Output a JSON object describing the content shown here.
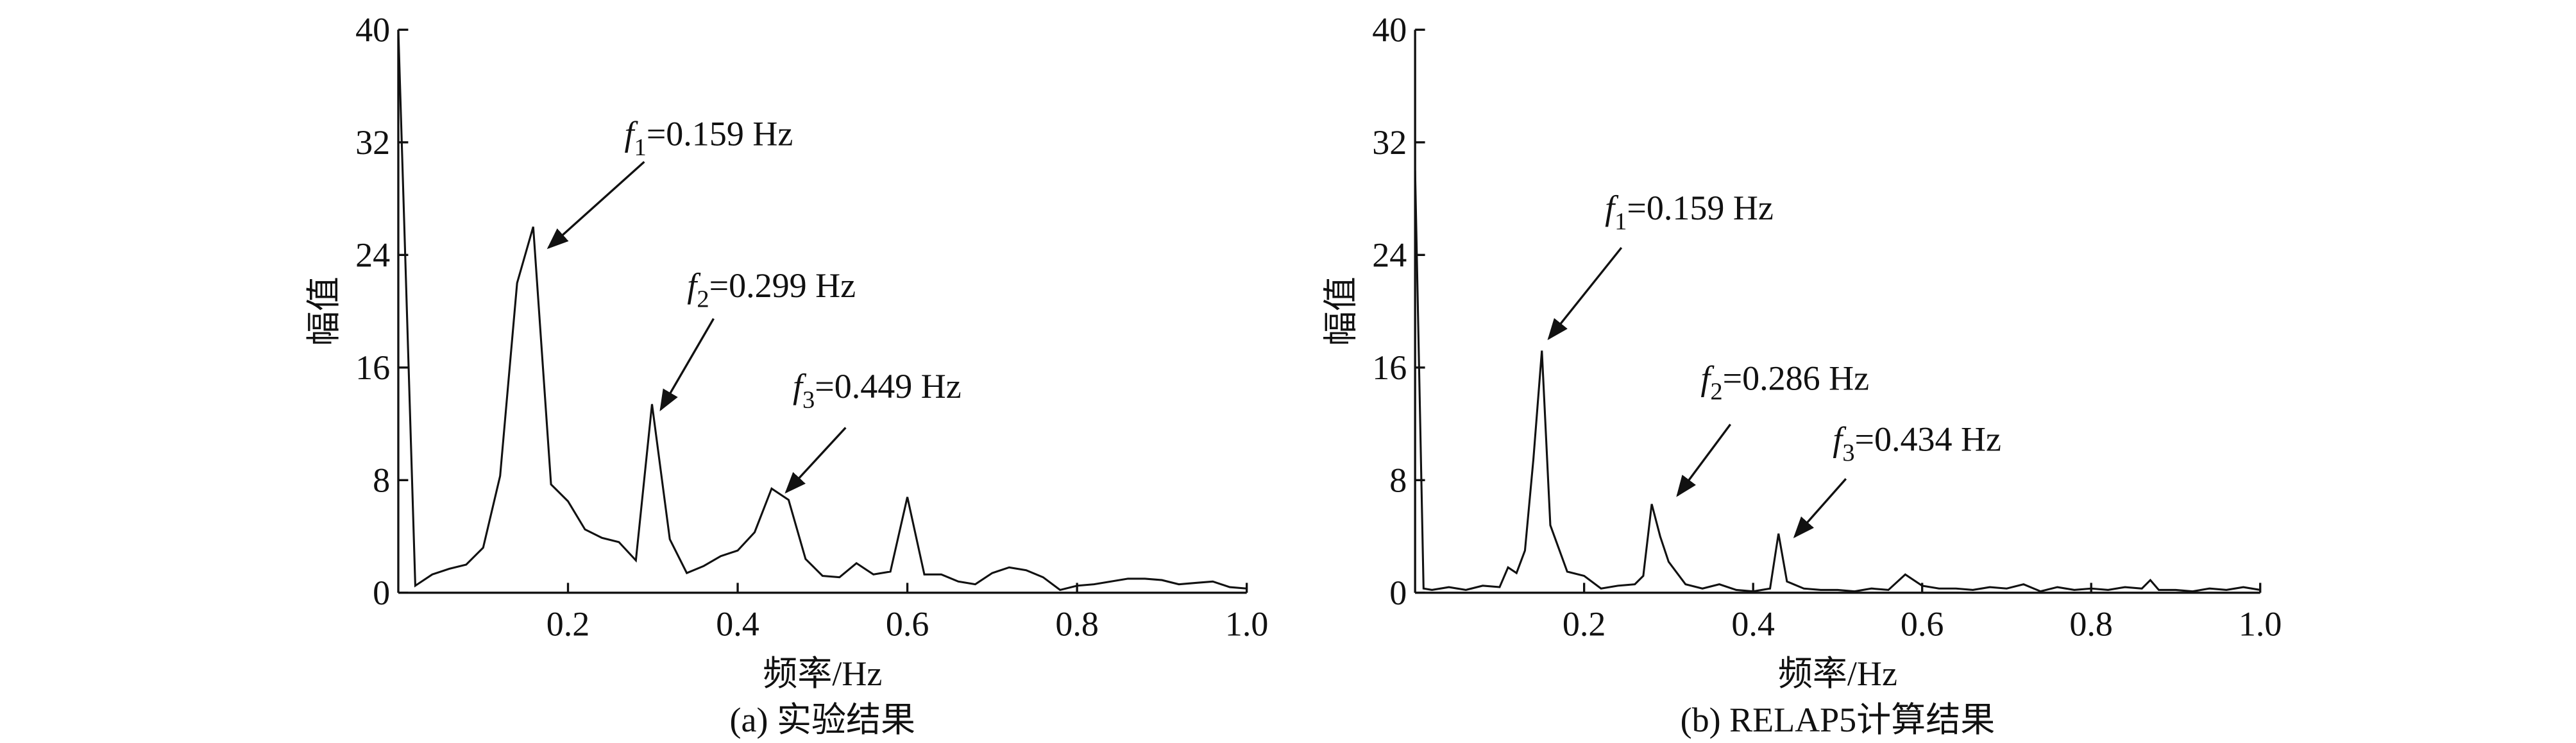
{
  "chart_data": [
    {
      "type": "line",
      "caption": "(a) 实验结果",
      "xlabel": "频率/Hz",
      "ylabel": "幅值",
      "color": "#111111",
      "xlim": [
        0,
        1
      ],
      "xticks": [
        0.2,
        0.4,
        0.6,
        0.8,
        {
          "value": 1,
          "label": "1.0"
        }
      ],
      "ylim": [
        0,
        40
      ],
      "yticks": [
        0,
        8,
        16,
        24,
        32,
        40
      ],
      "x": [
        0.0,
        0.02,
        0.04,
        0.06,
        0.08,
        0.1,
        0.12,
        0.14,
        0.159,
        0.18,
        0.2,
        0.22,
        0.24,
        0.26,
        0.28,
        0.299,
        0.32,
        0.34,
        0.36,
        0.38,
        0.4,
        0.42,
        0.44,
        0.46,
        0.48,
        0.5,
        0.52,
        0.54,
        0.56,
        0.58,
        0.6,
        0.62,
        0.64,
        0.66,
        0.68,
        0.7,
        0.72,
        0.74,
        0.76,
        0.78,
        0.8,
        0.82,
        0.84,
        0.86,
        0.88,
        0.9,
        0.92,
        0.94,
        0.96,
        0.98,
        1.0
      ],
      "values": [
        40,
        0.5,
        1.3,
        1.7,
        2.0,
        3.2,
        8.3,
        22,
        26,
        7.7,
        6.5,
        4.5,
        3.9,
        3.6,
        2.3,
        13.4,
        3.8,
        1.4,
        1.9,
        2.6,
        3.0,
        4.3,
        7.4,
        6.6,
        2.4,
        1.2,
        1.1,
        2.1,
        1.3,
        1.5,
        6.8,
        1.3,
        1.3,
        0.8,
        0.6,
        1.4,
        1.8,
        1.6,
        1.1,
        0.2,
        0.5,
        0.6,
        0.8,
        1.0,
        1.0,
        0.9,
        0.6,
        0.7,
        0.8,
        0.4,
        0.3
      ],
      "annotations": [
        {
          "symbol": "f",
          "subscript": "1",
          "text": "=0.159 Hz"
        },
        {
          "symbol": "f",
          "subscript": "2",
          "text": "=0.299 Hz"
        },
        {
          "symbol": "f",
          "subscript": "3",
          "text": "=0.449 Hz"
        }
      ]
    },
    {
      "type": "line",
      "caption": "(b) RELAP5计算结果",
      "xlabel": "频率/Hz",
      "ylabel": "幅值",
      "color": "#111111",
      "xlim": [
        0,
        1
      ],
      "xticks": [
        0.2,
        0.4,
        0.6,
        0.8,
        {
          "value": 1,
          "label": "1.0"
        }
      ],
      "ylim": [
        0,
        40
      ],
      "yticks": [
        0,
        8,
        16,
        24,
        32,
        40
      ],
      "x": [
        0.0,
        0.01,
        0.02,
        0.04,
        0.06,
        0.08,
        0.1,
        0.11,
        0.12,
        0.13,
        0.14,
        0.15,
        0.16,
        0.18,
        0.2,
        0.22,
        0.24,
        0.26,
        0.27,
        0.28,
        0.29,
        0.3,
        0.32,
        0.34,
        0.36,
        0.38,
        0.4,
        0.42,
        0.43,
        0.44,
        0.46,
        0.48,
        0.5,
        0.52,
        0.54,
        0.56,
        0.58,
        0.6,
        0.62,
        0.64,
        0.66,
        0.68,
        0.7,
        0.72,
        0.74,
        0.76,
        0.78,
        0.8,
        0.82,
        0.84,
        0.86,
        0.87,
        0.88,
        0.9,
        0.92,
        0.94,
        0.96,
        0.98,
        1.0
      ],
      "values": [
        30,
        0.3,
        0.2,
        0.4,
        0.2,
        0.5,
        0.4,
        1.8,
        1.4,
        3.0,
        9.5,
        17.2,
        4.8,
        1.5,
        1.2,
        0.3,
        0.5,
        0.6,
        1.2,
        6.3,
        4.0,
        2.2,
        0.6,
        0.3,
        0.6,
        0.2,
        0.1,
        0.3,
        4.2,
        0.8,
        0.3,
        0.2,
        0.2,
        0.1,
        0.3,
        0.2,
        1.3,
        0.5,
        0.3,
        0.3,
        0.2,
        0.4,
        0.3,
        0.6,
        0.1,
        0.4,
        0.2,
        0.3,
        0.2,
        0.4,
        0.3,
        0.9,
        0.2,
        0.2,
        0.1,
        0.3,
        0.2,
        0.4,
        0.2
      ],
      "annotations": [
        {
          "symbol": "f",
          "subscript": "1",
          "text": "=0.159 Hz"
        },
        {
          "symbol": "f",
          "subscript": "2",
          "text": "=0.286 Hz"
        },
        {
          "symbol": "f",
          "subscript": "3",
          "text": "=0.434 Hz"
        }
      ]
    }
  ]
}
